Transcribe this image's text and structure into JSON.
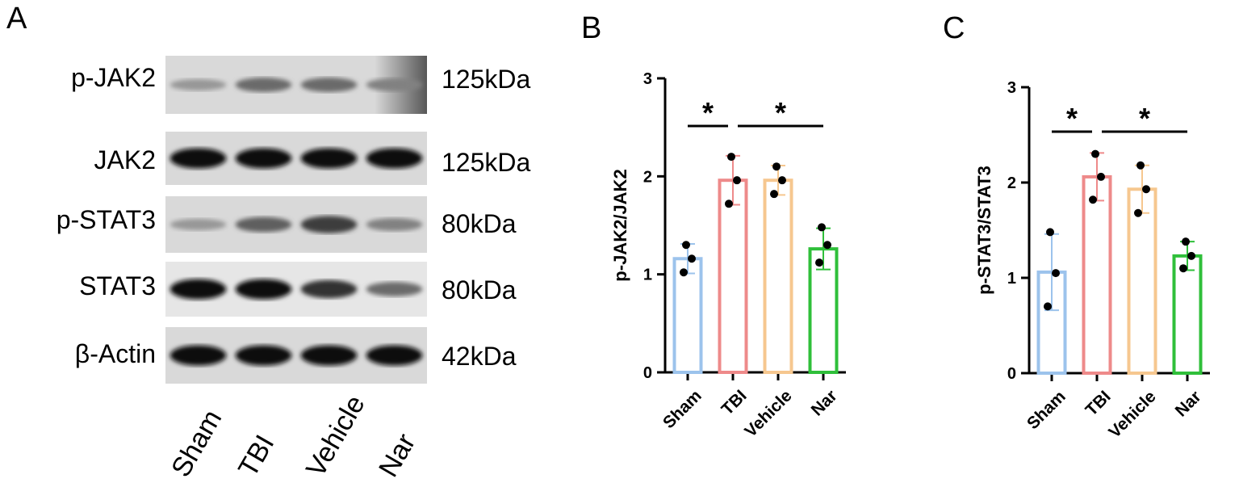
{
  "panels": {
    "a": "A",
    "b": "B",
    "c": "C"
  },
  "blot": {
    "lanes": [
      "Sham",
      "TBI",
      "Vehicle",
      "Nar"
    ],
    "rows": [
      {
        "protein": "p-JAK2",
        "size": "125kDa",
        "intensity": [
          0.35,
          0.55,
          0.55,
          0.45
        ]
      },
      {
        "protein": "JAK2",
        "size": "125kDa",
        "intensity": [
          0.95,
          0.95,
          0.95,
          0.95
        ]
      },
      {
        "protein": "p-STAT3",
        "size": "80kDa",
        "intensity": [
          0.35,
          0.6,
          0.75,
          0.45
        ]
      },
      {
        "protein": "STAT3",
        "size": "80kDa",
        "intensity": [
          0.95,
          0.95,
          0.8,
          0.55
        ]
      },
      {
        "protein": "β-Actin",
        "size": "42kDa",
        "intensity": [
          0.95,
          0.95,
          0.95,
          0.95
        ]
      }
    ]
  },
  "chart_data": [
    {
      "type": "bar",
      "ylabel": "p-JAK2/JAK2",
      "categories": [
        "Sham",
        "TBI",
        "Vehicle",
        "Nar"
      ],
      "values": [
        1.16,
        1.96,
        1.96,
        1.26
      ],
      "errors": [
        0.15,
        0.25,
        0.15,
        0.21
      ],
      "points": [
        [
          1.3,
          1.16,
          1.02
        ],
        [
          2.2,
          1.96,
          1.72
        ],
        [
          2.1,
          1.96,
          1.82
        ],
        [
          1.48,
          1.3,
          1.12
        ]
      ],
      "colors": [
        "#9cc3ec",
        "#ee8a8a",
        "#f6c78f",
        "#2fbf3a"
      ],
      "ylim": [
        0,
        3
      ],
      "yticks": [
        0,
        1,
        2,
        3
      ],
      "significance": [
        {
          "from": 0,
          "to": 1,
          "label": "*"
        },
        {
          "from": 1,
          "to": 3,
          "label": "*"
        }
      ]
    },
    {
      "type": "bar",
      "ylabel": "p-STAT3/STAT3",
      "categories": [
        "Sham",
        "TBI",
        "Vehicle",
        "Nar"
      ],
      "values": [
        1.06,
        2.06,
        1.93,
        1.23
      ],
      "errors": [
        0.4,
        0.25,
        0.25,
        0.15
      ],
      "points": [
        [
          1.48,
          1.05,
          0.7
        ],
        [
          2.3,
          2.06,
          1.82
        ],
        [
          2.18,
          1.93,
          1.68
        ],
        [
          1.38,
          1.23,
          1.1
        ]
      ],
      "colors": [
        "#9cc3ec",
        "#ee8a8a",
        "#f6c78f",
        "#2fbf3a"
      ],
      "ylim": [
        0,
        3
      ],
      "yticks": [
        0,
        1,
        2,
        3
      ],
      "significance": [
        {
          "from": 0,
          "to": 1,
          "label": "*"
        },
        {
          "from": 1,
          "to": 3,
          "label": "*"
        }
      ]
    }
  ]
}
